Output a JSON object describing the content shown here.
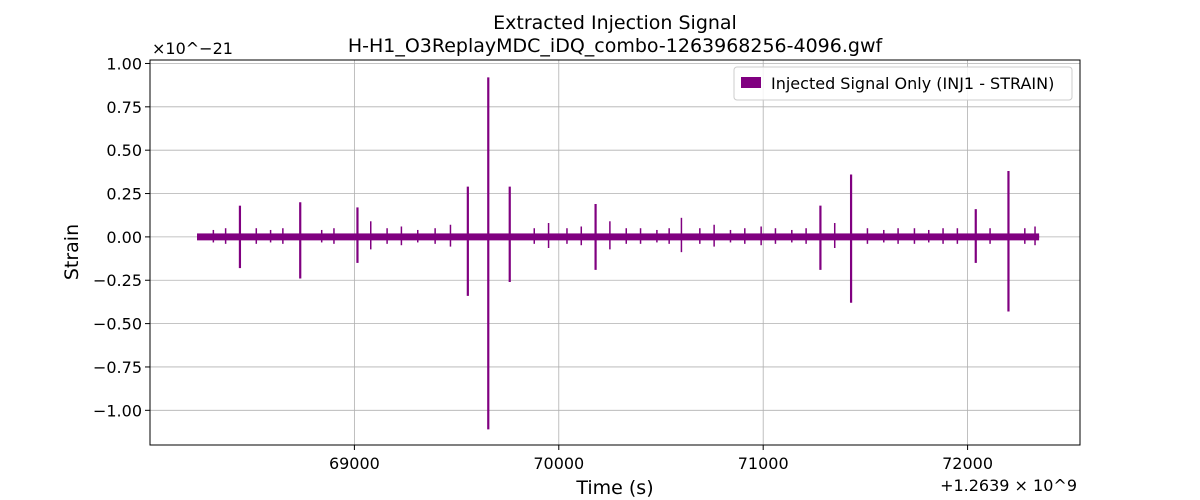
{
  "chart_data": {
    "type": "line",
    "title": "Extracted Injection Signal",
    "subtitle": "H-H1_O3ReplayMDC_iDQ_combo-1263968256-4096.gwf",
    "xlabel": "Time (s)",
    "ylabel": "Strain",
    "x_offset_label": "+1.2639 × 10^9",
    "y_scale_label": "×10^−21",
    "xlim": [
      68000,
      72550
    ],
    "ylim": [
      -1.2,
      1.02
    ],
    "x_ticks": [
      69000,
      70000,
      71000,
      72000
    ],
    "x_tick_labels": [
      "69000",
      "70000",
      "71000",
      "72000"
    ],
    "y_ticks": [
      -1.0,
      -0.75,
      -0.5,
      -0.25,
      0.0,
      0.25,
      0.5,
      0.75,
      1.0
    ],
    "y_tick_labels": [
      "−1.00",
      "−0.75",
      "−0.50",
      "−0.25",
      "0.00",
      "0.25",
      "0.50",
      "0.75",
      "1.00"
    ],
    "grid": true,
    "legend_position": "top-right",
    "series": [
      {
        "name": "Injected Signal Only (INJ1 - STRAIN)",
        "color": "#800080",
        "x_range": [
          68230,
          72350
        ],
        "baseline_band": 0.02,
        "glitches": [
          {
            "t": 68440,
            "hi": 0.18,
            "lo": -0.18
          },
          {
            "t": 68735,
            "hi": 0.2,
            "lo": -0.24
          },
          {
            "t": 69015,
            "hi": 0.17,
            "lo": -0.15
          },
          {
            "t": 69555,
            "hi": 0.29,
            "lo": -0.34
          },
          {
            "t": 69655,
            "hi": 0.92,
            "lo": -1.11
          },
          {
            "t": 69760,
            "hi": 0.29,
            "lo": -0.26
          },
          {
            "t": 70180,
            "hi": 0.19,
            "lo": -0.19
          },
          {
            "t": 71280,
            "hi": 0.18,
            "lo": -0.19
          },
          {
            "t": 71430,
            "hi": 0.36,
            "lo": -0.38
          },
          {
            "t": 72040,
            "hi": 0.16,
            "lo": -0.15
          },
          {
            "t": 72200,
            "hi": 0.38,
            "lo": -0.43
          }
        ],
        "minor_glitches": [
          {
            "t": 68310,
            "a": 0.04
          },
          {
            "t": 68370,
            "a": 0.05
          },
          {
            "t": 68520,
            "a": 0.05
          },
          {
            "t": 68590,
            "a": 0.04
          },
          {
            "t": 68650,
            "a": 0.05
          },
          {
            "t": 68840,
            "a": 0.04
          },
          {
            "t": 68900,
            "a": 0.05
          },
          {
            "t": 69080,
            "a": 0.09
          },
          {
            "t": 69160,
            "a": 0.05
          },
          {
            "t": 69230,
            "a": 0.06
          },
          {
            "t": 69310,
            "a": 0.04
          },
          {
            "t": 69395,
            "a": 0.05
          },
          {
            "t": 69470,
            "a": 0.07
          },
          {
            "t": 69880,
            "a": 0.05
          },
          {
            "t": 69950,
            "a": 0.08
          },
          {
            "t": 70040,
            "a": 0.05
          },
          {
            "t": 70110,
            "a": 0.06
          },
          {
            "t": 70250,
            "a": 0.09
          },
          {
            "t": 70330,
            "a": 0.05
          },
          {
            "t": 70400,
            "a": 0.05
          },
          {
            "t": 70480,
            "a": 0.04
          },
          {
            "t": 70540,
            "a": 0.05
          },
          {
            "t": 70600,
            "a": 0.11
          },
          {
            "t": 70690,
            "a": 0.05
          },
          {
            "t": 70760,
            "a": 0.07
          },
          {
            "t": 70840,
            "a": 0.04
          },
          {
            "t": 70910,
            "a": 0.05
          },
          {
            "t": 70990,
            "a": 0.06
          },
          {
            "t": 71060,
            "a": 0.05
          },
          {
            "t": 71140,
            "a": 0.04
          },
          {
            "t": 71210,
            "a": 0.05
          },
          {
            "t": 71350,
            "a": 0.08
          },
          {
            "t": 71510,
            "a": 0.05
          },
          {
            "t": 71590,
            "a": 0.04
          },
          {
            "t": 71660,
            "a": 0.05
          },
          {
            "t": 71740,
            "a": 0.05
          },
          {
            "t": 71810,
            "a": 0.04
          },
          {
            "t": 71880,
            "a": 0.05
          },
          {
            "t": 71950,
            "a": 0.05
          },
          {
            "t": 72110,
            "a": 0.05
          },
          {
            "t": 72280,
            "a": 0.05
          },
          {
            "t": 72330,
            "a": 0.06
          }
        ]
      }
    ]
  }
}
